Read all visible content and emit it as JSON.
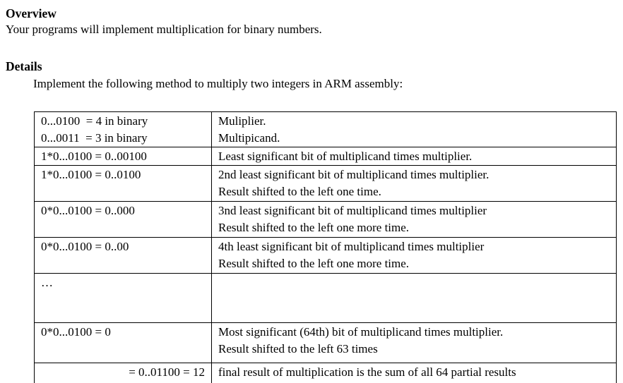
{
  "document": {
    "overview": {
      "heading": "Overview",
      "body": "Your programs will implement multiplication for binary numbers."
    },
    "details": {
      "heading": "Details",
      "intro": "Implement the following method to multiply two integers in ARM assembly:"
    },
    "table": {
      "rows": [
        {
          "left": [
            "0...0100  = 4 in binary",
            "0...0011  = 3 in binary"
          ],
          "right": [
            "Muliplier.",
            "Multipicand."
          ]
        },
        {
          "left": [
            "1*0...0100 = 0..00100"
          ],
          "right": [
            "Least significant bit of multiplicand times multiplier."
          ]
        },
        {
          "left": [
            "1*0...0100 = 0..0100"
          ],
          "right": [
            "2nd least significant bit of multiplicand times multiplier.",
            "Result shifted to the left one time."
          ]
        },
        {
          "left": [
            "0*0...0100 = 0..000"
          ],
          "right": [
            "3nd least significant bit of multiplicand times multiplier",
            "Result shifted to the left one more time."
          ]
        },
        {
          "left": [
            "0*0...0100 = 0..00"
          ],
          "right": [
            "4th least significant bit of multiplicand times multiplier",
            "Result shifted to the left one more time."
          ]
        },
        {
          "left": [
            "…"
          ],
          "right": []
        },
        {
          "left": [
            "0*0...0100 = 0"
          ],
          "right": [
            "Most significant (64th) bit of multiplicand times multiplier.",
            "Result shifted to the left 63 times"
          ]
        },
        {
          "left": [
            "= 0..01100 = 12"
          ],
          "right": [
            "final result of multiplication is the sum of all 64 partial results"
          ]
        }
      ]
    }
  },
  "colors": {
    "text": "#000000",
    "background": "#ffffff",
    "table_border": "#000000"
  }
}
